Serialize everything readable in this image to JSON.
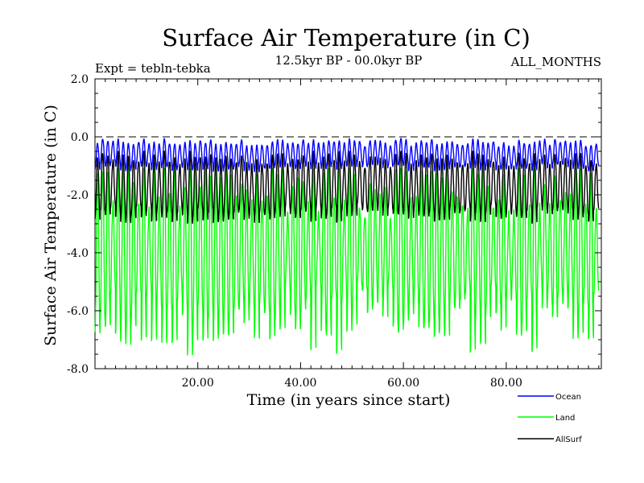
{
  "chart_data": {
    "type": "line",
    "title": "Surface Air Temperature (in C)",
    "subtitle": "12.5kyr BP - 00.0kyr BP",
    "left_label": "Expt = tebln-tebka",
    "right_label": "ALL_MONTHS",
    "xlabel": "Time (in years since start)",
    "ylabel": "Surface Air Temperature (in C)",
    "xlim": [
      0,
      98.5
    ],
    "ylim": [
      -8.0,
      2.0
    ],
    "x_ticks": [
      20,
      40,
      60,
      80
    ],
    "x_tick_labels": [
      "20.00",
      "40.00",
      "60.00",
      "80.00"
    ],
    "y_ticks": [
      -8,
      -6,
      -4,
      -2,
      0,
      2
    ],
    "y_tick_labels": [
      "-8.0",
      "-6.0",
      "-4.0",
      "-2.0",
      "0.0",
      "2.0"
    ],
    "reference_line": {
      "y": 0.0,
      "style": "dashed"
    },
    "seasonal_cycles": 98,
    "legend_position": "bottom-right",
    "series": [
      {
        "name": "Ocean",
        "color": "#0000ff",
        "summer_peak_typical": -0.2,
        "winter_trough_typical": -1.05,
        "max": 0.15,
        "min": -1.4
      },
      {
        "name": "Land",
        "color": "#00ff00",
        "summer_peak_typical": -1.6,
        "winter_trough_typical": -6.3,
        "max": -1.1,
        "min": -7.7
      },
      {
        "name": "AllSurf",
        "color": "#000000",
        "summer_peak_typical": -0.75,
        "winter_trough_typical": -2.7,
        "max": -0.5,
        "min": -3.3
      }
    ]
  }
}
